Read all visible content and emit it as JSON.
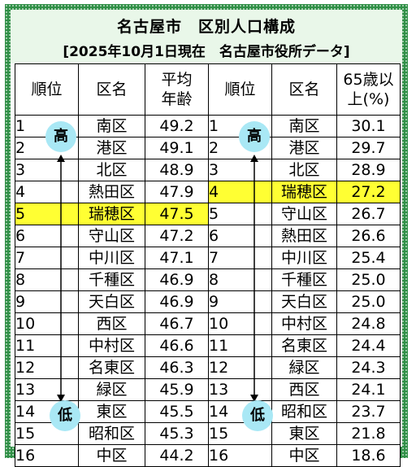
{
  "title": "名古屋市　区別人口構成",
  "subtitle": "[2025年10月1日現在　名古屋市役所データ]",
  "left_table": {
    "headers": [
      "順位",
      "区名",
      "平均\n年齢"
    ],
    "rows": [
      {
        "rank": "1",
        "ward": "南区",
        "value": "49.2"
      },
      {
        "rank": "2",
        "ward": "港区",
        "value": "49.1"
      },
      {
        "rank": "3",
        "ward": "北区",
        "value": "48.9"
      },
      {
        "rank": "4",
        "ward": "熱田区",
        "value": "47.9"
      },
      {
        "rank": "5",
        "ward": "瑞穂区",
        "value": "47.5"
      },
      {
        "rank": "6",
        "ward": "守山区",
        "value": "47.2"
      },
      {
        "rank": "7",
        "ward": "中川区",
        "value": "47.1"
      },
      {
        "rank": "8",
        "ward": "千種区",
        "value": "46.9"
      },
      {
        "rank": "9",
        "ward": "天白区",
        "value": "46.9"
      },
      {
        "rank": "10",
        "ward": "西区",
        "value": "46.7"
      },
      {
        "rank": "11",
        "ward": "中村区",
        "value": "46.6"
      },
      {
        "rank": "12",
        "ward": "名東区",
        "value": "46.3"
      },
      {
        "rank": "13",
        "ward": "緑区",
        "value": "45.9"
      },
      {
        "rank": "14",
        "ward": "東区",
        "value": "45.5"
      },
      {
        "rank": "15",
        "ward": "昭和区",
        "value": "45.3"
      },
      {
        "rank": "16",
        "ward": "中区",
        "value": "44.2"
      }
    ],
    "highlight_index": 4
  },
  "right_table": {
    "headers": [
      "順位",
      "区名",
      "65歳以\n上(%)"
    ],
    "rows": [
      {
        "rank": "1",
        "ward": "南区",
        "value": "30.1"
      },
      {
        "rank": "2",
        "ward": "港区",
        "value": "29.7"
      },
      {
        "rank": "3",
        "ward": "北区",
        "value": "28.9"
      },
      {
        "rank": "4",
        "ward": "瑞穂区",
        "value": "27.2"
      },
      {
        "rank": "5",
        "ward": "守山区",
        "value": "26.7"
      },
      {
        "rank": "6",
        "ward": "熱田区",
        "value": "26.6"
      },
      {
        "rank": "7",
        "ward": "中川区",
        "value": "25.4"
      },
      {
        "rank": "8",
        "ward": "千種区",
        "value": "25.0"
      },
      {
        "rank": "9",
        "ward": "天白区",
        "value": "25.0"
      },
      {
        "rank": "10",
        "ward": "中村区",
        "value": "24.8"
      },
      {
        "rank": "11",
        "ward": "名東区",
        "value": "24.4"
      },
      {
        "rank": "12",
        "ward": "緑区",
        "value": "24.3"
      },
      {
        "rank": "13",
        "ward": "西区",
        "value": "24.1"
      },
      {
        "rank": "14",
        "ward": "昭和区",
        "value": "23.7"
      },
      {
        "rank": "15",
        "ward": "東区",
        "value": "21.8"
      },
      {
        "rank": "16",
        "ward": "中区",
        "value": "18.6"
      }
    ],
    "highlight_index": 3
  },
  "badges": {
    "high": "高",
    "low": "低"
  },
  "colors": {
    "frame": "#2f8f46",
    "title_bg": "#e9f7e9",
    "highlight": "#ffff33",
    "badge": "#a9e8f5"
  }
}
